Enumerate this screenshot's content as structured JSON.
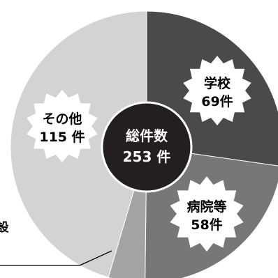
{
  "chart_data": {
    "type": "pie",
    "title": "",
    "slices": [
      {
        "label": "学校",
        "value": 69,
        "display": "69件",
        "color": "#4a4a4a",
        "text_color": "#ffffff",
        "badge": "burst-dark"
      },
      {
        "label": "病院等",
        "value": 58,
        "display": "58件",
        "color": "#777777",
        "text_color": "#000000",
        "badge": "burst-light"
      },
      {
        "label": "",
        "value": 11,
        "display": "",
        "color": "#a3a3a3",
        "text_color": "#000000",
        "badge": "none"
      },
      {
        "label": "その他",
        "value": 115,
        "display": "115 件",
        "color": "#d3d3d3",
        "text_color": "#000000",
        "badge": "burst-light"
      }
    ],
    "total_label": "総件数",
    "total_value": "253 件",
    "callout_text": "設"
  }
}
